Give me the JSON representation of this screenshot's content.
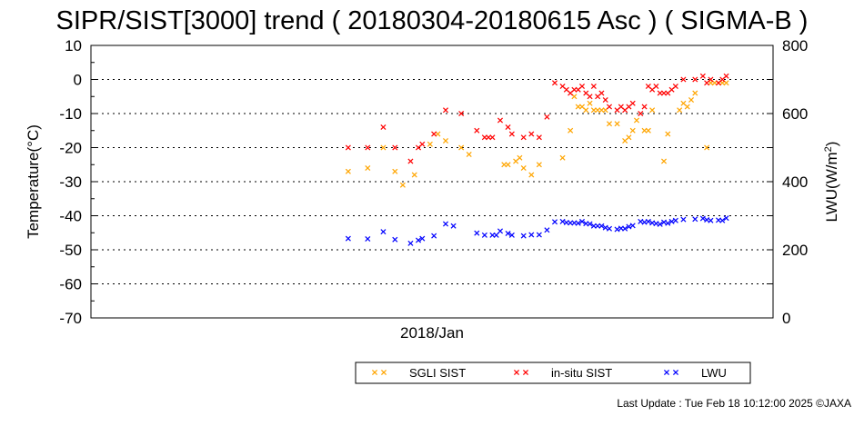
{
  "chart_data": {
    "type": "scatter",
    "title": "SIPR/SIST[3000] trend ( 20180304-20180615 Asc ) ( SIGMA-B )",
    "xlabel": "2018/Jan",
    "ylabel": "Temperature(°C)",
    "y2label": "LWU(W/m²)",
    "ylim": [
      -70,
      10
    ],
    "y2lim": [
      0,
      800
    ],
    "yticks": [
      "10",
      "0",
      "-10",
      "-20",
      "-30",
      "-40",
      "-50",
      "-60",
      "-70"
    ],
    "y2ticks": [
      "800",
      "600",
      "400",
      "200",
      "0"
    ],
    "grid": "horizontal dotted",
    "legend_position": "bottom-right",
    "series": [
      {
        "name": "SGLI SIST",
        "color": "#ffa500",
        "marker": "x",
        "axis": "left",
        "x": [
          66,
          71,
          75,
          78,
          80,
          83,
          87,
          89,
          91,
          95,
          97,
          106,
          107,
          109,
          110,
          111,
          113,
          115,
          121,
          123,
          124,
          125,
          126,
          127,
          128,
          129,
          130,
          131,
          132,
          133,
          135,
          137,
          138,
          139,
          140,
          142,
          143,
          144,
          147,
          148,
          151,
          152,
          153,
          154,
          155,
          158,
          159,
          160,
          161,
          162,
          163
        ],
        "y": [
          -27,
          -26,
          -20,
          -27,
          -31,
          -28,
          -19,
          -16,
          -18,
          -20,
          -22,
          -25,
          -25,
          -24,
          -23,
          -26,
          -28,
          -25,
          -23,
          -15,
          -5,
          -8,
          -8,
          -9,
          -7,
          -9,
          -9,
          -9,
          -9,
          -13,
          -13,
          -18,
          -17,
          -15,
          -12,
          -15,
          -15,
          -9,
          -24,
          -16,
          -9,
          -7,
          -8,
          -6,
          -4,
          -20,
          -1,
          -1,
          -1,
          -1,
          -1
        ]
      },
      {
        "name": "in-situ SIST",
        "color": "#ff0000",
        "marker": "x",
        "axis": "left",
        "x": [
          66,
          71,
          75,
          78,
          82,
          84,
          85,
          88,
          91,
          95,
          99,
          101,
          102,
          103,
          105,
          107,
          108,
          111,
          113,
          115,
          117,
          119,
          121,
          122,
          123,
          124,
          125,
          126,
          127,
          128,
          129,
          130,
          131,
          132,
          133,
          135,
          136,
          137,
          138,
          139,
          141,
          142,
          143,
          144,
          145,
          146,
          147,
          148,
          149,
          150,
          152,
          155,
          157,
          158,
          159,
          161,
          162,
          163
        ],
        "y": [
          -20,
          -20,
          -14,
          -20,
          -24,
          -20,
          -19,
          -16,
          -9,
          -10,
          -15,
          -17,
          -17,
          -17,
          -12,
          -14,
          -16,
          -17,
          -16,
          -17,
          -11,
          -1,
          -2,
          -3,
          -4,
          -3,
          -3,
          -2,
          -4,
          -5,
          -2,
          -5,
          -4,
          -6,
          -8,
          -9,
          -8,
          -9,
          -8,
          -7,
          -10,
          -8,
          -2,
          -3,
          -2,
          -4,
          -4,
          -4,
          -3,
          -2,
          0,
          0,
          1,
          -1,
          0,
          -1,
          0,
          1
        ]
      },
      {
        "name": "LWU",
        "color": "#0000ff",
        "marker": "x",
        "axis": "right",
        "x": [
          66,
          71,
          75,
          78,
          82,
          84,
          85,
          88,
          91,
          93,
          99,
          101,
          103,
          104,
          105,
          107,
          108,
          111,
          113,
          115,
          117,
          119,
          121,
          122,
          123,
          124,
          125,
          126,
          127,
          128,
          129,
          130,
          131,
          132,
          133,
          135,
          136,
          137,
          138,
          139,
          141,
          142,
          143,
          144,
          145,
          146,
          147,
          148,
          149,
          150,
          152,
          155,
          157,
          158,
          159,
          161,
          162,
          163
        ],
        "y": [
          233,
          232,
          253,
          230,
          219,
          228,
          233,
          241,
          276,
          270,
          249,
          243,
          243,
          243,
          255,
          248,
          243,
          241,
          244,
          244,
          258,
          282,
          283,
          280,
          279,
          279,
          278,
          283,
          277,
          276,
          270,
          270,
          270,
          265,
          262,
          260,
          263,
          262,
          268,
          271,
          283,
          281,
          283,
          279,
          277,
          275,
          281,
          278,
          283,
          286,
          289,
          290,
          292,
          288,
          286,
          287,
          286,
          293
        ]
      }
    ]
  },
  "footer": {
    "last_update": "Last Update : Tue Feb 18 10:12:00 2025 ©JAXA"
  }
}
